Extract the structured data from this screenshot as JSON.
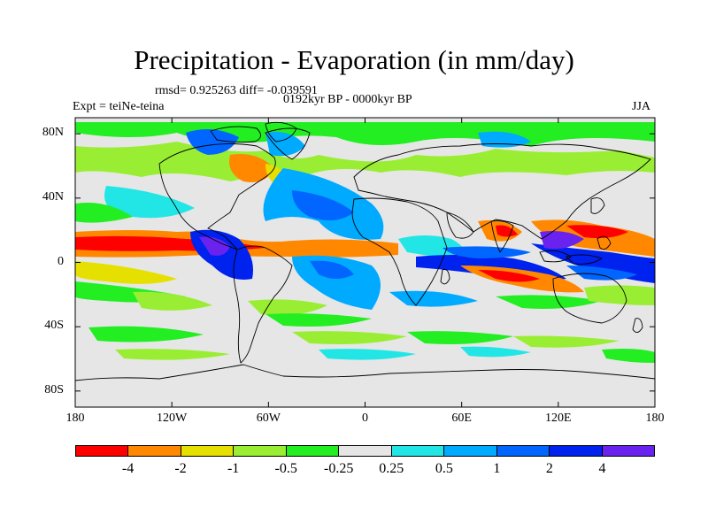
{
  "title": "Precipitation - Evaporation (in mm/day)",
  "stats": "rmsd= 0.925263 diff= -0.039591",
  "period": "0192kyr BP - 0000kyr BP",
  "experiment": "Expt = teiNe-teina",
  "season": "JJA",
  "map": {
    "lon_range": [
      -180,
      180
    ],
    "lat_range": [
      -90,
      90
    ],
    "lat_ticks": [
      {
        "value": 80,
        "label": "80N"
      },
      {
        "value": 40,
        "label": "40N"
      },
      {
        "value": 0,
        "label": "0"
      },
      {
        "value": -40,
        "label": "40S"
      },
      {
        "value": -80,
        "label": "80S"
      }
    ],
    "lon_ticks": [
      {
        "value": -180,
        "label": "180"
      },
      {
        "value": -120,
        "label": "120W"
      },
      {
        "value": -60,
        "label": "60W"
      },
      {
        "value": 0,
        "label": "0"
      },
      {
        "value": 60,
        "label": "60E"
      },
      {
        "value": 120,
        "label": "120E"
      },
      {
        "value": 180,
        "label": "180"
      }
    ],
    "colors": {
      "land_and_neutral": "#e6e6e6",
      "coast": "#000000"
    }
  },
  "colorbar": {
    "levels": [
      "-4",
      "-2",
      "-1",
      "-0.5",
      "-0.25",
      "0.25",
      "0.5",
      "1",
      "2",
      "4"
    ],
    "colors": [
      "#ff0000",
      "#ff8800",
      "#e6e000",
      "#99ee33",
      "#22ee22",
      "#e6e6e6",
      "#22e6e6",
      "#00aaff",
      "#0066ff",
      "#0022ee",
      "#6a22ee"
    ]
  }
}
